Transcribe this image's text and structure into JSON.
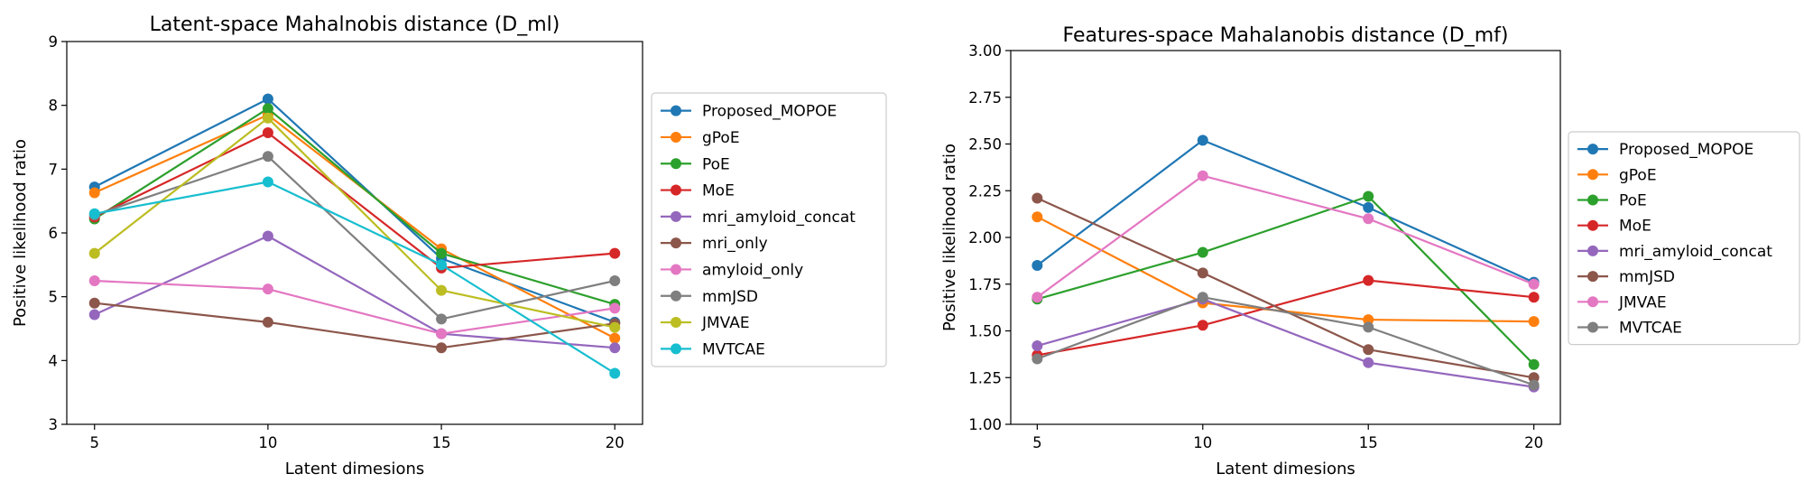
{
  "chart_data": [
    {
      "type": "line",
      "title": "Latent-space Mahalnobis distance (D_ml)",
      "xlabel": "Latent dimesions",
      "ylabel": "Positive likelihood ratio",
      "x": [
        5,
        10,
        15,
        20
      ],
      "xticks": [
        5,
        10,
        15,
        20
      ],
      "xlim": [
        4.2,
        20.8
      ],
      "ylim": [
        3,
        9
      ],
      "yticks": [
        3,
        4,
        5,
        6,
        7,
        8,
        9
      ],
      "ytick_labels": [
        "3",
        "4",
        "5",
        "6",
        "7",
        "8",
        "9"
      ],
      "grid": false,
      "legend_position": "outside right",
      "series": [
        {
          "name": "Proposed_MOPOE",
          "color": "#1f77b4",
          "values": [
            6.72,
            8.1,
            5.6,
            4.6
          ]
        },
        {
          "name": "gPoE",
          "color": "#ff7f0e",
          "values": [
            6.63,
            7.85,
            5.75,
            4.35
          ]
        },
        {
          "name": "PoE",
          "color": "#2ca02c",
          "values": [
            6.22,
            7.95,
            5.68,
            4.88
          ]
        },
        {
          "name": "MoE",
          "color": "#d62728",
          "values": [
            6.25,
            7.57,
            5.45,
            5.68
          ]
        },
        {
          "name": "mri_amyloid_concat",
          "color": "#9467bd",
          "values": [
            4.72,
            5.95,
            4.42,
            4.2
          ]
        },
        {
          "name": "mri_only",
          "color": "#8c564b",
          "values": [
            4.9,
            4.6,
            4.2,
            4.58
          ]
        },
        {
          "name": "amyloid_only",
          "color": "#e377c2",
          "values": [
            5.25,
            5.12,
            4.42,
            4.82
          ]
        },
        {
          "name": "mmJSD",
          "color": "#7f7f7f",
          "values": [
            6.28,
            7.2,
            4.65,
            5.25
          ]
        },
        {
          "name": "JMVAE",
          "color": "#bcbd22",
          "values": [
            5.68,
            7.8,
            5.1,
            4.52
          ]
        },
        {
          "name": "MVTCAE",
          "color": "#17becf",
          "values": [
            6.3,
            6.8,
            5.5,
            3.8
          ]
        }
      ]
    },
    {
      "type": "line",
      "title": "Features-space Mahalanobis distance (D_mf)",
      "xlabel": "Latent dimesions",
      "ylabel": "Positive likelihood ratio",
      "x": [
        5,
        10,
        15,
        20
      ],
      "xticks": [
        5,
        10,
        15,
        20
      ],
      "xlim": [
        4.2,
        20.8
      ],
      "ylim": [
        1.0,
        3.0
      ],
      "yticks": [
        1.0,
        1.25,
        1.5,
        1.75,
        2.0,
        2.25,
        2.5,
        2.75,
        3.0
      ],
      "ytick_labels": [
        "1.00",
        "1.25",
        "1.50",
        "1.75",
        "2.00",
        "2.25",
        "2.50",
        "2.75",
        "3.00"
      ],
      "grid": false,
      "legend_position": "outside right",
      "series": [
        {
          "name": "Proposed_MOPOE",
          "color": "#1f77b4",
          "values": [
            1.85,
            2.52,
            2.16,
            1.76
          ]
        },
        {
          "name": "gPoE",
          "color": "#ff7f0e",
          "values": [
            2.11,
            1.65,
            1.56,
            1.55
          ]
        },
        {
          "name": "PoE",
          "color": "#2ca02c",
          "values": [
            1.67,
            1.92,
            2.22,
            1.32
          ]
        },
        {
          "name": "MoE",
          "color": "#d62728",
          "values": [
            1.37,
            1.53,
            1.77,
            1.68
          ]
        },
        {
          "name": "mri_amyloid_concat",
          "color": "#9467bd",
          "values": [
            1.42,
            1.67,
            1.33,
            1.2
          ]
        },
        {
          "name": "mmJSD",
          "color": "#8c564b",
          "values": [
            2.21,
            1.81,
            1.4,
            1.25
          ]
        },
        {
          "name": "JMVAE",
          "color": "#e377c2",
          "values": [
            1.68,
            2.33,
            2.1,
            1.75
          ]
        },
        {
          "name": "MVTCAE",
          "color": "#7f7f7f",
          "values": [
            1.35,
            1.68,
            1.52,
            1.21
          ]
        }
      ]
    }
  ]
}
